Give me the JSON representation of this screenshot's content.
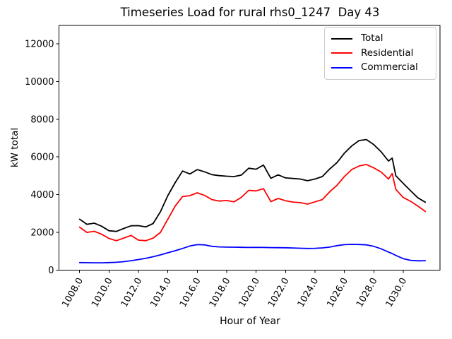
{
  "chart_data": {
    "type": "line",
    "title": "Timeseries Load for rural rhs0_1247  Day 43",
    "xlabel": "Hour of Year",
    "ylabel": "kW total",
    "xlim": [
      1006.6,
      1032.5
    ],
    "ylim": [
      0,
      12970
    ],
    "grid": false,
    "legend_position": "upper right",
    "xticks": {
      "values": [
        1008,
        1010,
        1012,
        1014,
        1016,
        1018,
        1020,
        1022,
        1024,
        1026,
        1028,
        1030
      ],
      "labels": [
        "1008.0",
        "1010.0",
        "1012.0",
        "1014.0",
        "1016.0",
        "1018.0",
        "1020.0",
        "1022.0",
        "1024.0",
        "1026.0",
        "1028.0",
        "1030.0"
      ]
    },
    "yticks": {
      "values": [
        0,
        2000,
        4000,
        6000,
        8000,
        10000,
        12000
      ],
      "labels": [
        "0",
        "2000",
        "4000",
        "6000",
        "8000",
        "10000",
        "12000"
      ]
    },
    "x": [
      1008.0,
      1008.5,
      1009.0,
      1009.5,
      1010.0,
      1010.5,
      1011.0,
      1011.5,
      1012.0,
      1012.5,
      1013.0,
      1013.5,
      1014.0,
      1014.5,
      1015.0,
      1015.5,
      1016.0,
      1016.5,
      1017.0,
      1017.5,
      1018.0,
      1018.5,
      1019.0,
      1019.5,
      1020.0,
      1020.5,
      1021.0,
      1021.5,
      1022.0,
      1022.5,
      1023.0,
      1023.5,
      1024.0,
      1024.5,
      1025.0,
      1025.5,
      1026.0,
      1026.5,
      1027.0,
      1027.5,
      1028.0,
      1028.5,
      1029.0,
      1029.25,
      1029.5,
      1030.0,
      1030.5,
      1031.0,
      1031.5
    ],
    "series": [
      {
        "name": "Total",
        "color": "#000000",
        "values": [
          2700,
          2430,
          2490,
          2330,
          2090,
          2050,
          2210,
          2350,
          2360,
          2290,
          2470,
          3100,
          3950,
          4640,
          5250,
          5100,
          5330,
          5210,
          5060,
          5010,
          4980,
          4960,
          5040,
          5400,
          5350,
          5570,
          4870,
          5050,
          4890,
          4860,
          4830,
          4740,
          4830,
          4960,
          5360,
          5700,
          6200,
          6580,
          6870,
          6920,
          6650,
          6270,
          5780,
          5940,
          5000,
          4600,
          4210,
          3830,
          3600
        ]
      },
      {
        "name": "Residential",
        "color": "#ff0000",
        "values": [
          2280,
          2000,
          2060,
          1900,
          1680,
          1560,
          1700,
          1840,
          1590,
          1560,
          1700,
          2000,
          2700,
          3400,
          3900,
          3950,
          4100,
          3960,
          3740,
          3660,
          3690,
          3620,
          3860,
          4230,
          4200,
          4320,
          3630,
          3800,
          3680,
          3610,
          3580,
          3500,
          3620,
          3740,
          4150,
          4500,
          4960,
          5330,
          5520,
          5600,
          5420,
          5200,
          4830,
          5120,
          4280,
          3850,
          3650,
          3390,
          3110
        ]
      },
      {
        "name": "Commercial",
        "color": "#0000ff",
        "values": [
          400,
          395,
          390,
          390,
          400,
          415,
          450,
          500,
          560,
          630,
          710,
          810,
          920,
          1030,
          1150,
          1280,
          1350,
          1340,
          1260,
          1230,
          1220,
          1215,
          1210,
          1200,
          1205,
          1200,
          1195,
          1190,
          1185,
          1175,
          1160,
          1150,
          1155,
          1180,
          1220,
          1300,
          1350,
          1365,
          1360,
          1340,
          1260,
          1130,
          960,
          880,
          780,
          610,
          520,
          495,
          500
        ]
      }
    ]
  }
}
